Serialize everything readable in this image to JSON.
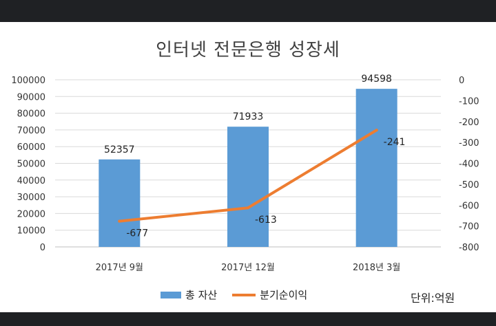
{
  "chart_data": {
    "type": "bar",
    "title": "인터넷 전문은행 성장세",
    "categories": [
      "2017년 9월",
      "2017년 12월",
      "2018년 3월"
    ],
    "series": [
      {
        "name": "총 자산",
        "type": "bar",
        "axis": "left",
        "values": [
          52357,
          71933,
          94598
        ],
        "color": "#5b9bd5"
      },
      {
        "name": "분기순이익",
        "type": "line",
        "axis": "right",
        "values": [
          -677,
          -613,
          -241
        ],
        "color": "#ed7d31"
      }
    ],
    "ylim": [
      0,
      100000
    ],
    "yticks": [
      "0",
      "10000",
      "20000",
      "30000",
      "40000",
      "50000",
      "60000",
      "70000",
      "80000",
      "90000",
      "100000"
    ],
    "y2lim": [
      -800,
      0
    ],
    "y2ticks": [
      "0",
      "-100",
      "-200",
      "-300",
      "-400",
      "-500",
      "-600",
      "-700",
      "-800"
    ],
    "legend_position": "bottom",
    "grid": true,
    "unit_note": "단위:억원"
  }
}
